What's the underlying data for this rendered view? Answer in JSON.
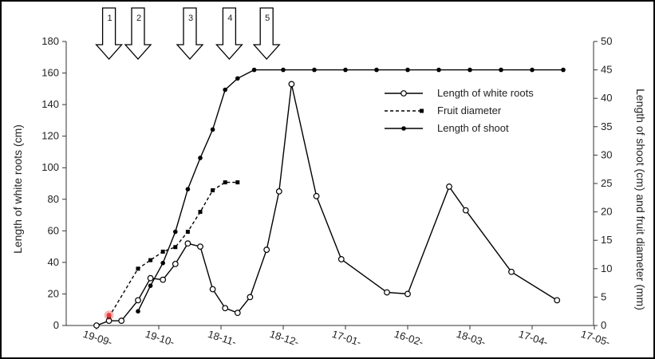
{
  "chart_data": {
    "type": "line",
    "ylabel_left": "Length of white roots (cm)",
    "ylabel_right": "Length of shoot (cm) and fruit diameter (mm)",
    "ylim_left": [
      0,
      180
    ],
    "ylim_right": [
      0,
      50
    ],
    "yticks_left": [
      0,
      20,
      40,
      60,
      80,
      100,
      120,
      140,
      160,
      180
    ],
    "yticks_right": [
      0,
      5,
      10,
      15,
      20,
      25,
      30,
      35,
      40,
      45,
      50
    ],
    "xticks": [
      {
        "label": "19-09-",
        "day": 0
      },
      {
        "label": "19-10-",
        "day": 30
      },
      {
        "label": "18-11-",
        "day": 60
      },
      {
        "label": "18-12-",
        "day": 90
      },
      {
        "label": "17-01-",
        "day": 120
      },
      {
        "label": "16-02-",
        "day": 150
      },
      {
        "label": "18-03-",
        "day": 180
      },
      {
        "label": "17-04-",
        "day": 210
      },
      {
        "label": "17-05-",
        "day": 240
      }
    ],
    "xlim": [
      0,
      240
    ],
    "arrows": [
      {
        "label": "1",
        "day": 6
      },
      {
        "label": "2",
        "day": 20
      },
      {
        "label": "3",
        "day": 45
      },
      {
        "label": "4",
        "day": 64
      },
      {
        "label": "5",
        "day": 82
      }
    ],
    "series": [
      {
        "name": "Length of white roots",
        "axis": "left",
        "style": "solid",
        "marker": "open-circle",
        "color": "#000000",
        "points": [
          [
            0,
            0
          ],
          [
            6,
            3
          ],
          [
            12,
            3
          ],
          [
            20,
            16
          ],
          [
            26,
            30
          ],
          [
            32,
            29
          ],
          [
            38,
            39
          ],
          [
            44,
            52
          ],
          [
            50,
            50
          ],
          [
            56,
            23
          ],
          [
            62,
            11
          ],
          [
            68,
            8
          ],
          [
            74,
            18
          ],
          [
            82,
            48
          ],
          [
            88,
            85
          ],
          [
            94,
            153
          ],
          [
            106,
            82
          ],
          [
            118,
            42
          ],
          [
            140,
            21
          ],
          [
            150,
            20
          ],
          [
            170,
            88
          ],
          [
            178,
            73
          ],
          [
            200,
            34
          ],
          [
            222,
            16
          ]
        ]
      },
      {
        "name": "Fruit diameter",
        "axis": "right",
        "style": "dashed",
        "marker": "square",
        "color": "#000000",
        "points": [
          [
            6,
            1.5
          ],
          [
            20,
            10
          ],
          [
            26,
            11.5
          ],
          [
            32,
            13
          ],
          [
            38,
            13.8
          ],
          [
            44,
            16.5
          ],
          [
            50,
            20
          ],
          [
            56,
            23.8
          ],
          [
            62,
            25.2
          ],
          [
            68,
            25.2
          ]
        ]
      },
      {
        "name": "Length of shoot",
        "axis": "right",
        "style": "solid",
        "marker": "filled-diamond",
        "color": "#000000",
        "points": [
          [
            20,
            2.5
          ],
          [
            26,
            7
          ],
          [
            32,
            11
          ],
          [
            38,
            16.5
          ],
          [
            44,
            24
          ],
          [
            50,
            29.5
          ],
          [
            56,
            34.5
          ],
          [
            62,
            41.5
          ],
          [
            68,
            43.5
          ],
          [
            76,
            45
          ],
          [
            90,
            45
          ],
          [
            105,
            45
          ],
          [
            120,
            45
          ],
          [
            135,
            45
          ],
          [
            150,
            45
          ],
          [
            165,
            45
          ],
          [
            180,
            45
          ],
          [
            195,
            45
          ],
          [
            210,
            45
          ],
          [
            225,
            45
          ]
        ]
      }
    ],
    "highlight_point": {
      "series": "Length of white roots",
      "day": 6,
      "value": 3,
      "color": "#e83a3a"
    }
  }
}
